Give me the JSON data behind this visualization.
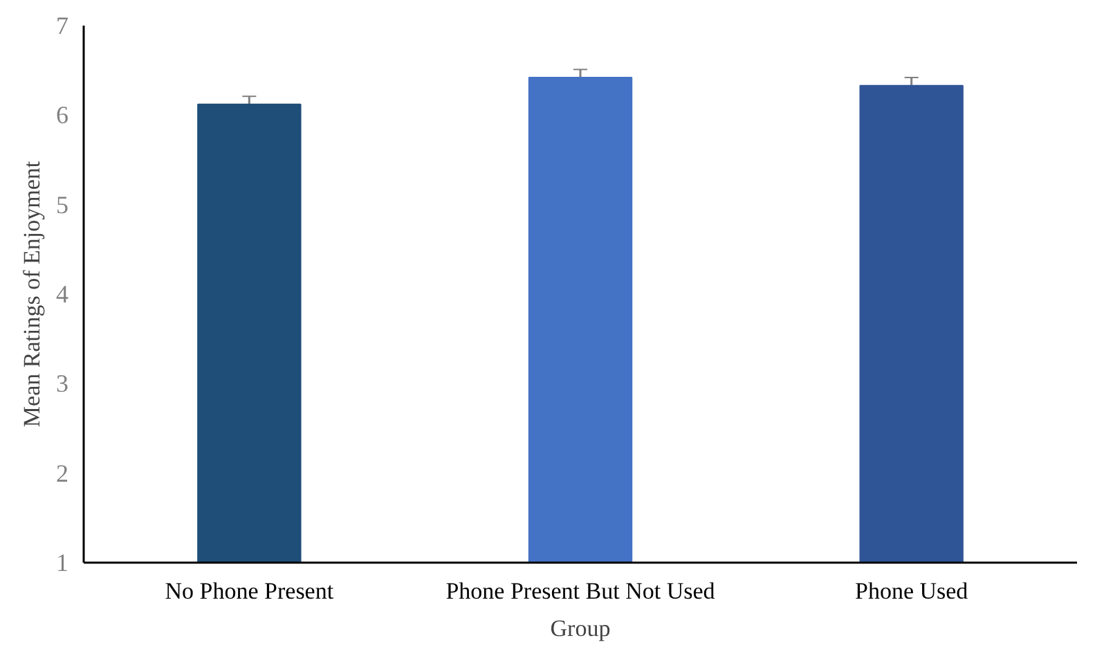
{
  "chart_data": {
    "type": "bar",
    "xlabel": "Group",
    "ylabel": "Mean Ratings of Enjoyment",
    "categories": [
      "No Phone Present",
      "Phone Present But Not Used",
      "Phone Used"
    ],
    "values": [
      6.12,
      6.42,
      6.33
    ],
    "errors": [
      0.09,
      0.09,
      0.09
    ],
    "colors": [
      "#1f4e79",
      "#4472c4",
      "#2f5597"
    ],
    "ylim": [
      1,
      7
    ],
    "yticks": [
      1,
      2,
      3,
      4,
      5,
      6,
      7
    ],
    "grid": false
  }
}
